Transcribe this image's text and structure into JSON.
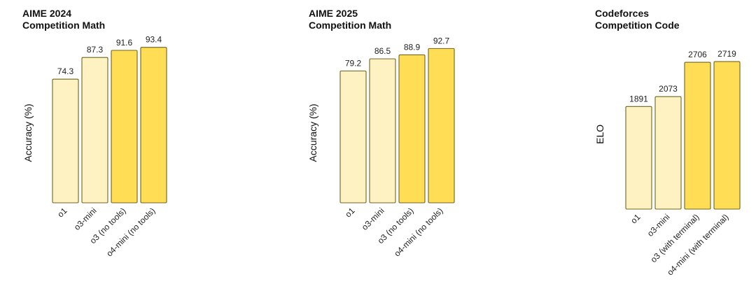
{
  "chart_data": [
    {
      "type": "bar",
      "title": "AIME 2024",
      "subtitle": "Competition Math",
      "ylabel": "Accuracy (%)",
      "ylim": [
        0,
        100
      ],
      "categories": [
        "o1",
        "o3-mini",
        "o3 (no tools)",
        "o4-mini (no tools)"
      ],
      "values": [
        74.3,
        87.3,
        91.6,
        93.4
      ],
      "value_labels": [
        "74.3",
        "87.3",
        "91.6",
        "93.4"
      ],
      "colors": [
        "#fff2c2",
        "#fff2c2",
        "#ffdd55",
        "#ffdd55"
      ],
      "grid": false
    },
    {
      "type": "bar",
      "title": "AIME 2025",
      "subtitle": "Competition Math",
      "ylabel": "Accuracy (%)",
      "ylim": [
        0,
        100
      ],
      "categories": [
        "o1",
        "o3-mini",
        "o3 (no tools)",
        "o4-mini (no tools)"
      ],
      "values": [
        79.2,
        86.5,
        88.9,
        92.7
      ],
      "value_labels": [
        "79.2",
        "86.5",
        "88.9",
        "92.7"
      ],
      "colors": [
        "#fff2c2",
        "#fff2c2",
        "#ffdd55",
        "#ffdd55"
      ],
      "grid": false
    },
    {
      "type": "bar",
      "title": "Codeforces",
      "subtitle": "Competition Code",
      "ylabel": "ELO",
      "ylim": [
        0,
        2900
      ],
      "categories": [
        "o1",
        "o3-mini",
        "o3 (with terminal)",
        "o4-mini (with terminal)"
      ],
      "values": [
        1891,
        2073,
        2706,
        2719
      ],
      "value_labels": [
        "1891",
        "2073",
        "2706",
        "2719"
      ],
      "colors": [
        "#fff2c2",
        "#fff2c2",
        "#ffdd55",
        "#ffdd55"
      ],
      "grid": false
    }
  ]
}
